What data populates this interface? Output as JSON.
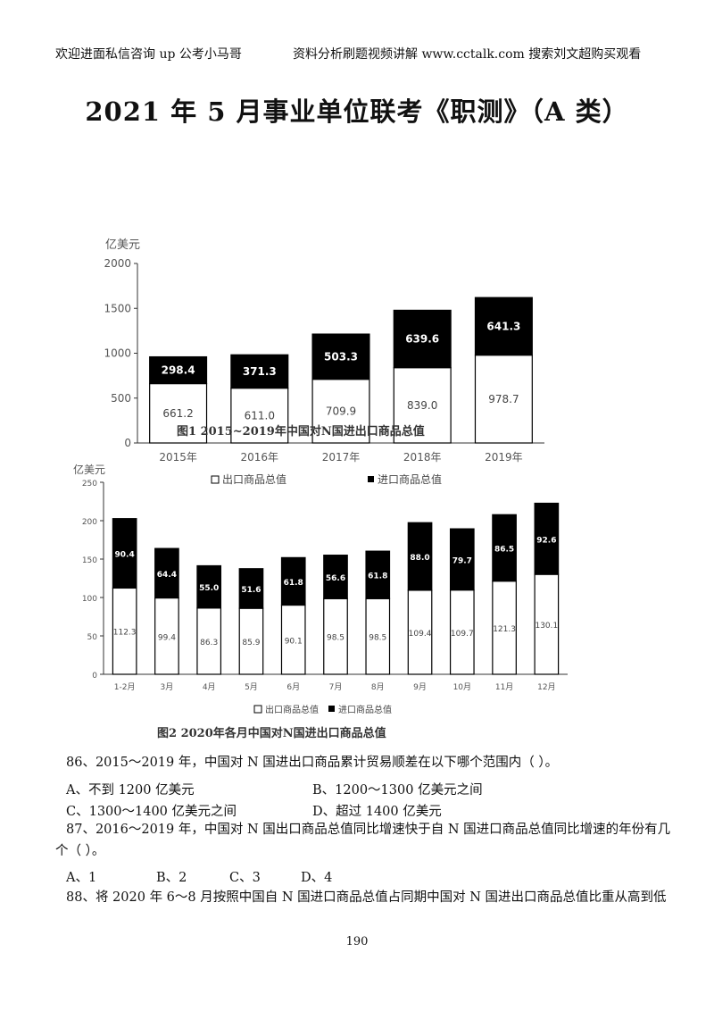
{
  "header": {
    "left": "欢迎进面私信咨询 up 公考小马哥",
    "right": "资料分析刷题视频讲解 www.cctalk.com 搜索刘文超购买观看"
  },
  "title": "2021 年 5 月事业单位联考《职测》（A 类）",
  "chart_data": [
    {
      "type": "bar",
      "stacked": true,
      "title": "图1  2015~2019年中国对N国进出口商品总值",
      "ylabel": "亿美元",
      "ylim": [
        0,
        2000
      ],
      "yticks": [
        "0",
        "500",
        "1000",
        "1500",
        "2000"
      ],
      "categories": [
        "2015年",
        "2016年",
        "2017年",
        "2018年",
        "2019年"
      ],
      "series": [
        {
          "name": "出口商品总值",
          "color": "#ffffff",
          "values": [
            661.2,
            611.0,
            709.9,
            839.0,
            978.7
          ],
          "labels": [
            "661.2",
            "611.0",
            "709.9",
            "839.0",
            "978.7"
          ]
        },
        {
          "name": "进口商品总值",
          "color": "#000000",
          "values": [
            298.4,
            371.3,
            503.3,
            639.6,
            641.3
          ],
          "labels": [
            "298.4",
            "371.3",
            "503.3",
            "639.6",
            "641.3"
          ]
        }
      ],
      "legend": [
        "出口商品总值",
        "进口商品总值"
      ]
    },
    {
      "type": "bar",
      "stacked": true,
      "title": "图2  2020年各月中国对N国进出口商品总值",
      "ylabel": "亿美元",
      "ylim": [
        0,
        250
      ],
      "yticks": [
        "0",
        "50",
        "100",
        "150",
        "200",
        "250"
      ],
      "categories": [
        "1-2月",
        "3月",
        "4月",
        "5月",
        "6月",
        "7月",
        "8月",
        "9月",
        "10月",
        "11月",
        "12月"
      ],
      "series": [
        {
          "name": "出口商品总值",
          "color": "#ffffff",
          "values": [
            112.3,
            99.4,
            86.3,
            85.9,
            90.1,
            98.5,
            98.5,
            109.4,
            109.7,
            121.3,
            130.1
          ],
          "labels": [
            "112.3",
            "99.4",
            "86.3",
            "85.9",
            "90.1",
            "98.5",
            "98.5",
            "109.4",
            "109.7",
            "121.3",
            "130.1"
          ]
        },
        {
          "name": "进口商品总值",
          "color": "#000000",
          "values": [
            90.4,
            64.4,
            55.0,
            51.6,
            61.8,
            56.6,
            61.8,
            88.0,
            79.7,
            86.5,
            92.6
          ],
          "labels": [
            "90.4",
            "64.4",
            "55.0",
            "51.6",
            "61.8",
            "56.6",
            "61.8",
            "88.0",
            "79.7",
            "86.5",
            "92.6"
          ]
        }
      ],
      "legend": [
        "出口商品总值",
        "进口商品总值"
      ]
    }
  ],
  "questions": {
    "q86": {
      "stem": "86、2015～2019 年，中国对 N 国进出口商品累计贸易顺差在以下哪个范围内（    ）。",
      "a": "A、不到 1200 亿美元",
      "b": "B、1200～1300 亿美元之间",
      "c": "C、1300～1400 亿美元之间",
      "d": "D、超过 1400 亿美元"
    },
    "q87": {
      "stem1": "87、2016～2019 年，中国对 N 国出口商品总值同比增速快于自 N 国进口商品总值同比增速的年份有几",
      "stem2": "个（    ）。",
      "a": "A、1",
      "b": "B、2",
      "c": "C、3",
      "d": "D、4"
    },
    "q88": {
      "stem": "88、将 2020 年 6～8 月按照中国自 N 国进口商品总值占同期中国对 N 国进出口商品总值比重从高到低"
    }
  },
  "page_number": "190"
}
